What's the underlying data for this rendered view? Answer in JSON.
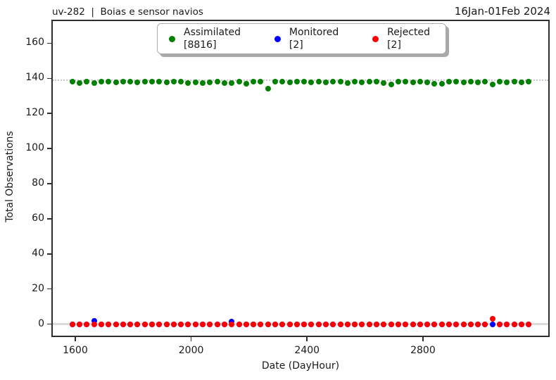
{
  "chart_data": {
    "type": "scatter",
    "title_left": "uv-282  |  Boias e sensor navios",
    "title_right": "16Jan-01Feb 2024",
    "xlabel": "Date (DayHour)",
    "ylabel": "Total Observations",
    "xlim": [
      1520,
      3235
    ],
    "ylim": [
      -7,
      173
    ],
    "xticks": [
      1600,
      2000,
      2400,
      2800
    ],
    "yticks": [
      0,
      20,
      40,
      60,
      80,
      100,
      120,
      140,
      160
    ],
    "grid": false,
    "legend_position": "upper center",
    "x_start": 1590,
    "x_step": 25,
    "n_points": 64,
    "reference_lines": [
      {
        "y": 138.8,
        "style": "dotted",
        "color": "#c9c9c9"
      },
      {
        "y": 0,
        "style": "solid",
        "color": "#dbdbdb"
      }
    ],
    "series": [
      {
        "name": "Assimilated",
        "count": 8816,
        "color": "#008000",
        "values": [
          138,
          137.2,
          138,
          137.2,
          138,
          138,
          137.6,
          138,
          138,
          137.6,
          138,
          138,
          138,
          137.6,
          138,
          138,
          137.4,
          137.8,
          137.4,
          137.6,
          138,
          137.4,
          137.2,
          138,
          137,
          138,
          138,
          134,
          138,
          138,
          137.6,
          138,
          138,
          137.8,
          138,
          137.6,
          138,
          138,
          137.4,
          138,
          137.6,
          138,
          138,
          137.2,
          136.5,
          138,
          138,
          137.6,
          138,
          137.8,
          137,
          136.8,
          138,
          138,
          137.6,
          138,
          137.8,
          138,
          136.5,
          138,
          137.6,
          138,
          137.8,
          138
        ]
      },
      {
        "name": "Monitored",
        "count": 2,
        "color": "#0000ff",
        "values": [
          0,
          0,
          0,
          1.8,
          0,
          0,
          0,
          0,
          0,
          0,
          0,
          0,
          0,
          0,
          0,
          0,
          0,
          0,
          0,
          0,
          0,
          0,
          1.5,
          0,
          0,
          0,
          0,
          0,
          0,
          0,
          0,
          0,
          0,
          0,
          0,
          0,
          0,
          0,
          0,
          0,
          0,
          0,
          0,
          0,
          0,
          0,
          0,
          0,
          0,
          0,
          0,
          0,
          0,
          0,
          0,
          0,
          0,
          0,
          0,
          0,
          0,
          0,
          0,
          0
        ]
      },
      {
        "name": "Rejected",
        "count": 2,
        "color": "#ff0000",
        "values": [
          0,
          0,
          0,
          0,
          0,
          0,
          0,
          0,
          0,
          0,
          0,
          0,
          0,
          0,
          0,
          0,
          0,
          0,
          0,
          0,
          0,
          0,
          0,
          0,
          0,
          0,
          0,
          0,
          0,
          0,
          0,
          0,
          0,
          0,
          0,
          0,
          0,
          0,
          0,
          0,
          0,
          0,
          0,
          0,
          0,
          0,
          0,
          0,
          0,
          0,
          0,
          0,
          0,
          0,
          0,
          0,
          0,
          0,
          3,
          0,
          0,
          0,
          0,
          0
        ]
      }
    ]
  }
}
